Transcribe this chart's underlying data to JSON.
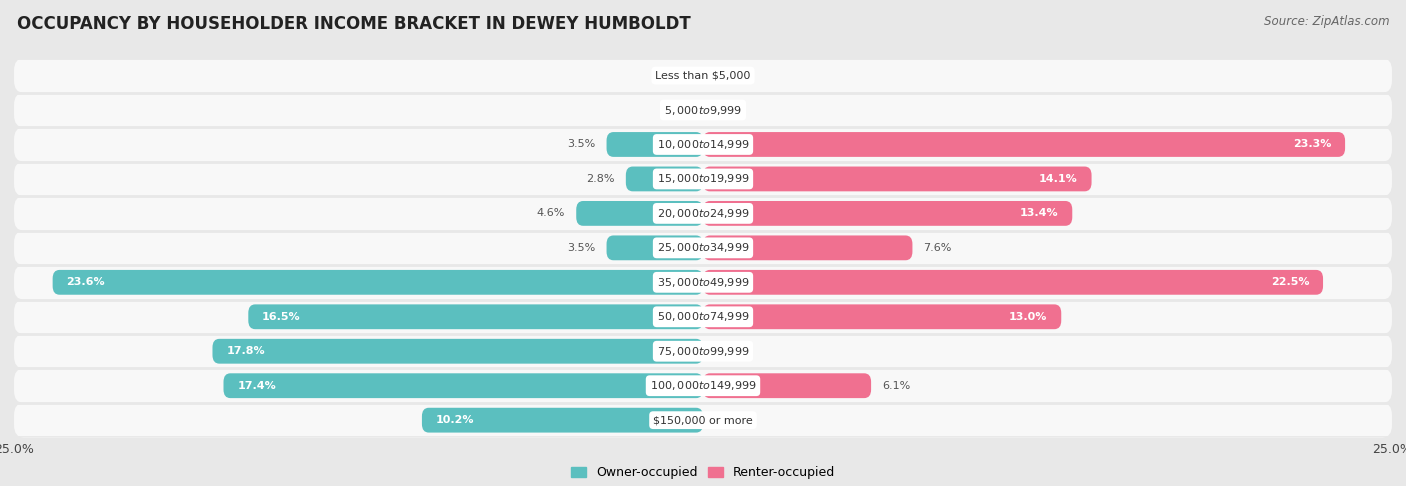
{
  "title": "OCCUPANCY BY HOUSEHOLDER INCOME BRACKET IN DEWEY HUMBOLDT",
  "source": "Source: ZipAtlas.com",
  "categories": [
    "Less than $5,000",
    "$5,000 to $9,999",
    "$10,000 to $14,999",
    "$15,000 to $19,999",
    "$20,000 to $24,999",
    "$25,000 to $34,999",
    "$35,000 to $49,999",
    "$50,000 to $74,999",
    "$75,000 to $99,999",
    "$100,000 to $149,999",
    "$150,000 or more"
  ],
  "owner_values": [
    0.0,
    0.0,
    3.5,
    2.8,
    4.6,
    3.5,
    23.6,
    16.5,
    17.8,
    17.4,
    10.2
  ],
  "renter_values": [
    0.0,
    0.0,
    23.3,
    14.1,
    13.4,
    7.6,
    22.5,
    13.0,
    0.0,
    6.1,
    0.0
  ],
  "owner_color": "#5bbfbf",
  "renter_color": "#f07090",
  "background_color": "#e8e8e8",
  "bar_background": "#f8f8f8",
  "xlim": 25.0,
  "title_fontsize": 12,
  "source_fontsize": 8.5,
  "label_fontsize": 8,
  "category_fontsize": 8,
  "legend_fontsize": 9,
  "axis_label_fontsize": 9,
  "bar_height": 0.72
}
